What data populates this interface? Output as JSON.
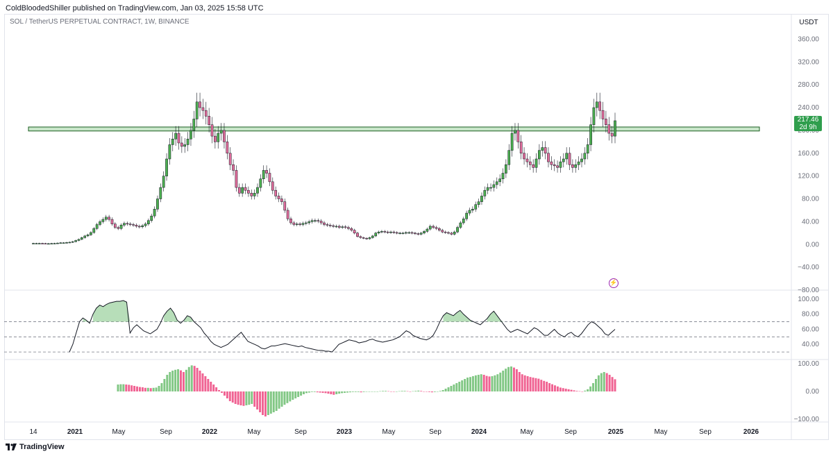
{
  "header": {
    "published_by": "ColdBloodedShiller published on TradingView.com, Jan 03, 2025 15:58 UTC"
  },
  "symbol": {
    "description": "SOL / TetherUS PERPETUAL CONTRACT, 1W, BINANCE"
  },
  "price_axis": {
    "currency": "USDT",
    "ticks": [
      "360.00",
      "320.00",
      "280.00",
      "240.00",
      "200.00",
      "160.00",
      "120.00",
      "80.00",
      "40.00",
      "0.00",
      "−40.00",
      "−80.00"
    ]
  },
  "price_badge": {
    "price": "217.46",
    "countdown": "2d 9h",
    "color": "#2f9e4d"
  },
  "rsi_axis": {
    "ticks": [
      "100.00",
      "80.00",
      "60.00",
      "40.00"
    ]
  },
  "osc_axis": {
    "ticks": [
      "100.00",
      "0.00",
      "−100.00"
    ]
  },
  "time_axis": {
    "labels": [
      {
        "text": "14",
        "bold": false
      },
      {
        "text": "2021",
        "bold": true
      },
      {
        "text": "May",
        "bold": false
      },
      {
        "text": "Sep",
        "bold": false
      },
      {
        "text": "2022",
        "bold": true
      },
      {
        "text": "May",
        "bold": false
      },
      {
        "text": "Sep",
        "bold": false
      },
      {
        "text": "2023",
        "bold": true
      },
      {
        "text": "May",
        "bold": false
      },
      {
        "text": "Sep",
        "bold": false
      },
      {
        "text": "2024",
        "bold": true
      },
      {
        "text": "May",
        "bold": false
      },
      {
        "text": "Sep",
        "bold": false
      },
      {
        "text": "2025",
        "bold": true
      },
      {
        "text": "May",
        "bold": false
      },
      {
        "text": "Sep",
        "bold": false
      },
      {
        "text": "2026",
        "bold": true
      }
    ]
  },
  "footer": {
    "brand": "TradingView"
  },
  "alert": {
    "icon": "lightning-alert-icon",
    "color": "#9c27b0"
  },
  "colors": {
    "up": "#4caf50",
    "down": "#e06d9c",
    "zone_fill": "#c8e6c9",
    "zone_stroke": "#1b5e20",
    "rsi_fill": "#a5d6a7",
    "osc_up": "#81c784",
    "osc_down": "#f06292"
  },
  "chart_data": {
    "type": "candlestick",
    "price_ylim": [
      -80,
      380
    ],
    "resistance_zone": [
      199,
      206
    ],
    "price_series": [
      2,
      2,
      2,
      1.8,
      1.5,
      1.6,
      1.8,
      2,
      2.5,
      3,
      3,
      3.5,
      4,
      5,
      7,
      9,
      12,
      15,
      17,
      21,
      28,
      35,
      40,
      44,
      48,
      44,
      36,
      30,
      28,
      34,
      37,
      36,
      35,
      34,
      32,
      31,
      33,
      36,
      42,
      50,
      62,
      80,
      100,
      120,
      150,
      175,
      185,
      195,
      178,
      172,
      175,
      185,
      200,
      220,
      250,
      240,
      235,
      225,
      210,
      190,
      180,
      195,
      200,
      180,
      160,
      140,
      130,
      100,
      90,
      100,
      95,
      90,
      85,
      90,
      100,
      115,
      130,
      125,
      110,
      95,
      85,
      80,
      75,
      60,
      45,
      38,
      35,
      36,
      35,
      37,
      38,
      40,
      42,
      42,
      41,
      38,
      35,
      34,
      33,
      32,
      32,
      30,
      31,
      30,
      28,
      25,
      20,
      14,
      12,
      11,
      10,
      12,
      15,
      20,
      22,
      23,
      22,
      21,
      22,
      21,
      20,
      20,
      20,
      21,
      21,
      20,
      19,
      18,
      20,
      23,
      27,
      32,
      30,
      28,
      25,
      22,
      21,
      20,
      18,
      22,
      30,
      38,
      45,
      55,
      60,
      62,
      70,
      75,
      85,
      95,
      100,
      100,
      105,
      110,
      115,
      125,
      140,
      165,
      195,
      200,
      180,
      160,
      150,
      145,
      140,
      135,
      150,
      165,
      170,
      160,
      145,
      140,
      138,
      135,
      145,
      150,
      160,
      140,
      135,
      140,
      145,
      150,
      160,
      175,
      210,
      240,
      250,
      235,
      220,
      210,
      195,
      190,
      217
    ],
    "rsi_ylim": [
      20,
      110
    ],
    "rsi_levels": [
      70,
      50,
      30
    ],
    "rsi_series": [
      30,
      40,
      55,
      70,
      75,
      72,
      68,
      80,
      88,
      92,
      90,
      93,
      95,
      96,
      97,
      97,
      98,
      96,
      55,
      62,
      66,
      62,
      58,
      56,
      54,
      57,
      60,
      68,
      78,
      84,
      88,
      82,
      72,
      68,
      72,
      78,
      76,
      70,
      66,
      62,
      55,
      50,
      44,
      40,
      38,
      36,
      38,
      40,
      44,
      48,
      52,
      56,
      50,
      44,
      42,
      40,
      38,
      35,
      34,
      36,
      38,
      38,
      39,
      40,
      41,
      40,
      39,
      38,
      37,
      38,
      36,
      35,
      34,
      33,
      32,
      32,
      31,
      31,
      30,
      35,
      40,
      42,
      44,
      46,
      45,
      44,
      42,
      43,
      44,
      46,
      47,
      45,
      44,
      43,
      44,
      45,
      46,
      48,
      50,
      54,
      58,
      56,
      52,
      50,
      48,
      47,
      46,
      48,
      52,
      60,
      70,
      78,
      82,
      80,
      78,
      82,
      85,
      80,
      76,
      72,
      70,
      68,
      66,
      70,
      74,
      80,
      84,
      78,
      72,
      66,
      60,
      56,
      58,
      60,
      58,
      56,
      54,
      58,
      62,
      60,
      56,
      52,
      52,
      56,
      60,
      55,
      52,
      50,
      54,
      56,
      52,
      50,
      54,
      60,
      66,
      70,
      68,
      64,
      60,
      54,
      52,
      56,
      60
    ],
    "osc_ylim": [
      -110,
      110
    ],
    "osc_series": [
      25,
      26,
      26,
      25,
      24,
      22,
      20,
      18,
      16,
      15,
      13,
      13,
      12,
      13,
      14,
      20,
      30,
      45,
      60,
      70,
      75,
      78,
      80,
      76,
      70,
      78,
      88,
      94,
      92,
      85,
      75,
      65,
      55,
      45,
      35,
      25,
      15,
      5,
      -5,
      -15,
      -25,
      -35,
      -40,
      -45,
      -48,
      -50,
      -52,
      -50,
      -48,
      -45,
      -55,
      -65,
      -75,
      -85,
      -90,
      -85,
      -80,
      -75,
      -70,
      -62,
      -55,
      -48,
      -42,
      -36,
      -30,
      -25,
      -20,
      -15,
      -10,
      -6,
      -4,
      -2,
      -2,
      -3,
      -4,
      -5,
      -6,
      -8,
      -10,
      -12,
      -10,
      -8,
      -6,
      -5,
      -4,
      -3,
      -2,
      -2,
      -2,
      -3,
      -2,
      -1,
      -1,
      0,
      0,
      0,
      1,
      2,
      2,
      1,
      0,
      -1,
      0,
      1,
      2,
      2,
      1,
      0,
      1,
      2,
      3,
      2,
      0,
      -1,
      -2,
      -3,
      -2,
      -1,
      2,
      5,
      10,
      15,
      20,
      25,
      30,
      35,
      40,
      45,
      50,
      52,
      55,
      58,
      60,
      62,
      60,
      56,
      54,
      55,
      58,
      62,
      68,
      75,
      82,
      88,
      90,
      86,
      80,
      70,
      62,
      58,
      55,
      52,
      50,
      48,
      46,
      42,
      38,
      35,
      30,
      26,
      22,
      18,
      14,
      12,
      10,
      8,
      6,
      4,
      2,
      1,
      0,
      3,
      8,
      18,
      30,
      45,
      58,
      66,
      70,
      66,
      60,
      52,
      44
    ],
    "time_labels": [
      "14",
      "2021",
      "May",
      "Sep",
      "2022",
      "May",
      "Sep",
      "2023",
      "May",
      "Sep",
      "2024",
      "May",
      "Sep",
      "2025",
      "May",
      "Sep",
      "2026"
    ]
  }
}
